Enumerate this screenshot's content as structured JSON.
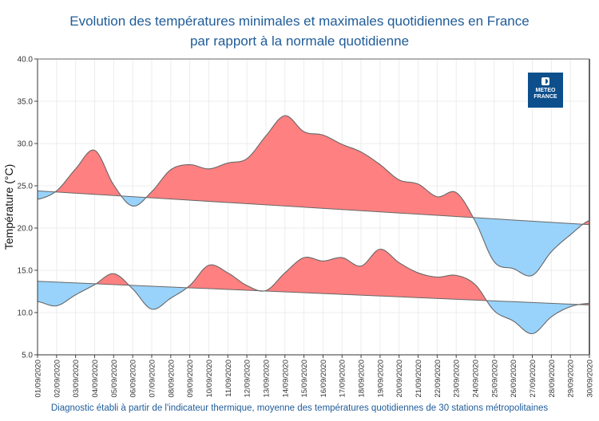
{
  "chart_data": {
    "type": "area",
    "title": [
      "Evolution des températures minimales et maximales quotidiennes en France",
      "par rapport à la normale quotidienne"
    ],
    "ylabel": "Température (°C)",
    "xlabel": "",
    "ylim": [
      5,
      40
    ],
    "yticks": [
      "5.0",
      "10.0",
      "15.0",
      "20.0",
      "25.0",
      "30.0",
      "35.0",
      "40.0"
    ],
    "grid": true,
    "categories": [
      "01/09/2020",
      "02/09/2020",
      "03/09/2020",
      "04/09/2020",
      "05/09/2020",
      "06/09/2020",
      "07/09/2020",
      "08/09/2020",
      "09/09/2020",
      "10/09/2020",
      "11/09/2020",
      "12/09/2020",
      "13/09/2020",
      "14/09/2020",
      "15/09/2020",
      "16/09/2020",
      "17/09/2020",
      "18/09/2020",
      "19/09/2020",
      "20/09/2020",
      "21/09/2020",
      "22/09/2020",
      "23/09/2020",
      "24/09/2020",
      "25/09/2020",
      "26/09/2020",
      "27/09/2020",
      "28/09/2020",
      "29/09/2020",
      "30/09/2020"
    ],
    "series": [
      {
        "key": "tmax",
        "values": [
          23.4,
          24.4,
          27.0,
          29.2,
          25.1,
          22.6,
          24.3,
          26.9,
          27.5,
          27.0,
          27.7,
          28.2,
          30.9,
          33.3,
          31.4,
          31.0,
          29.9,
          29.0,
          27.5,
          25.7,
          25.2,
          23.7,
          24.2,
          20.8,
          16.0,
          15.2,
          14.4,
          17.2,
          19.2,
          20.9
        ],
        "normal": [
          24.4,
          20.4
        ]
      },
      {
        "key": "tmin",
        "values": [
          11.3,
          10.8,
          12.1,
          13.3,
          14.6,
          12.8,
          10.4,
          11.7,
          13.2,
          15.6,
          14.7,
          13.2,
          12.6,
          14.7,
          16.5,
          16.1,
          16.5,
          15.5,
          17.5,
          15.9,
          14.7,
          14.2,
          14.4,
          13.3,
          10.2,
          9.0,
          7.5,
          9.5,
          10.7,
          11.1
        ],
        "normal": [
          13.7,
          10.9
        ]
      }
    ],
    "colors": {
      "above": "#ff8080",
      "below": "#99d3fb",
      "line": "#666666",
      "title": "#1f5c99"
    }
  },
  "footer": "Diagnostic établi à partir de l'indicateur thermique, moyenne des températures quotidiennes de 30 stations métropolitaines",
  "logo": {
    "line1": "METEO",
    "line2": "FRANCE"
  }
}
